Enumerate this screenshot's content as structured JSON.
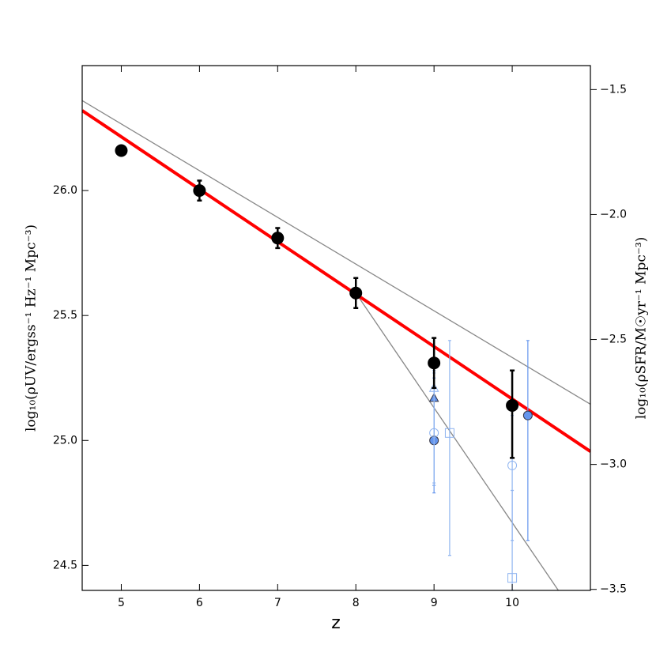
{
  "chart_data": {
    "type": "scatter",
    "x_label": "z",
    "y_label": "log₁₀(ρUV/ergss⁻¹ Hz⁻¹ Mpc⁻³)",
    "y2_label": "log₁₀(ρSFR/M☉yr⁻¹ Mpc⁻³)",
    "xlim": [
      4.5,
      11
    ],
    "xticks": [
      5,
      6,
      7,
      8,
      9,
      10
    ],
    "ylim": [
      24.4,
      26.5
    ],
    "yticks": [
      24.5,
      {
        "value": 25,
        "label": "25.0"
      },
      25.5,
      {
        "value": 26,
        "label": "26.0"
      }
    ],
    "y2lim": [
      -3.504,
      -1.404
    ],
    "y2ticks": [
      {
        "value": -3.5,
        "label": "−3.5"
      },
      {
        "value": -3,
        "label": "−3.0"
      },
      {
        "value": -2.5,
        "label": "−2.5"
      },
      {
        "value": -2,
        "label": "−2.0"
      },
      {
        "value": -1.5,
        "label": "−1.5"
      }
    ],
    "lines": [
      {
        "color": "#888888",
        "width": 1.3,
        "x": [
          4.5,
          11
        ],
        "values": [
          26.36,
          25.145
        ]
      },
      {
        "color": "#888888",
        "width": 1.3,
        "x": [
          8,
          10.59
        ],
        "values": [
          25.59,
          24.4
        ]
      },
      {
        "color": "#ff0000",
        "width": 4,
        "x": [
          4.5,
          11
        ],
        "values": [
          26.32,
          24.956
        ]
      }
    ],
    "series": [
      {
        "marker": "circle",
        "filled": true,
        "color": "#6495ed",
        "x": [
          9,
          10.2
        ],
        "values": [
          25.0,
          25.1
        ],
        "err_low": [
          0.21,
          0.5
        ],
        "err_high": [
          0.29,
          0.3
        ]
      },
      {
        "marker": "triangle",
        "filled": true,
        "color": "#6495ed",
        "x": [
          9
        ],
        "values": [
          25.17
        ],
        "err_low": [
          0.35
        ],
        "err_high": [
          0.08
        ]
      },
      {
        "marker": "circle",
        "filled": false,
        "color": "#8fb4f0",
        "x": [
          9,
          10
        ],
        "values": [
          25.03,
          24.9
        ],
        "err_low": [
          0.2,
          0.3
        ],
        "err_high": [
          0.25,
          0.2
        ]
      },
      {
        "marker": "triangle",
        "filled": false,
        "color": "#8fb4f0",
        "x": [
          9
        ],
        "values": [
          25.21
        ],
        "err_low": [
          0.39
        ],
        "err_high": [
          0.06
        ]
      },
      {
        "marker": "square",
        "filled": false,
        "color": "#8fb4f0",
        "x": [
          9.2,
          10
        ],
        "values": [
          25.03,
          24.45
        ],
        "err_low": [
          0.49,
          0.05
        ],
        "err_high": [
          0.37,
          0.35
        ]
      },
      {
        "marker": "circle",
        "filled": true,
        "color": "#000000",
        "x": [
          5,
          6,
          7,
          8,
          9,
          10
        ],
        "values": [
          26.16,
          26.0,
          25.81,
          25.59,
          25.31,
          25.14
        ],
        "err_low": [
          0.01,
          0.04,
          0.04,
          0.06,
          0.1,
          0.21
        ],
        "err_high": [
          0.01,
          0.04,
          0.04,
          0.06,
          0.1,
          0.14
        ]
      }
    ]
  }
}
